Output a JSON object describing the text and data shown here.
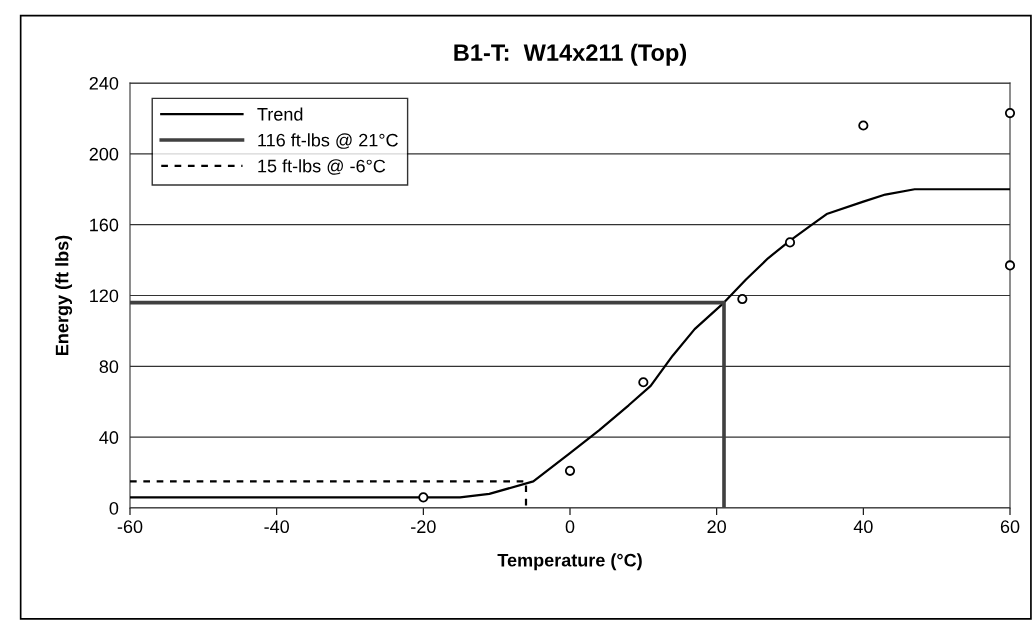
{
  "chart_data": {
    "type": "line",
    "title": "B1-T:  W14x211 (Top)",
    "xlabel": "Temperature (°C)",
    "ylabel": "Energy (ft lbs)",
    "xlim": [
      -60,
      60
    ],
    "xticks": [
      -60,
      -40,
      -20,
      0,
      20,
      40,
      60
    ],
    "ylim": [
      0,
      240
    ],
    "yticks": [
      0,
      40,
      80,
      120,
      160,
      200,
      240
    ],
    "grid": "y",
    "legend": "top left",
    "series": [
      {
        "type": "scatter",
        "marker": "circle",
        "color": "#000000",
        "x": [
          -20,
          0,
          10,
          23.5,
          30,
          40,
          60,
          60
        ],
        "values": [
          6,
          21,
          71,
          118,
          150,
          216,
          223,
          137
        ]
      },
      {
        "name": "Trend",
        "color": "#000000",
        "marker": "none",
        "line_style": "solid",
        "x": [
          -60,
          -15,
          -11,
          -5,
          0,
          4,
          8,
          11,
          14,
          17,
          21,
          24,
          27,
          30,
          33,
          35,
          40,
          43,
          47,
          60
        ],
        "values": [
          6,
          6,
          8,
          15,
          31,
          44,
          58,
          69,
          86,
          101,
          116,
          129,
          141,
          151,
          160,
          166,
          173,
          177,
          180,
          180
        ]
      },
      {
        "name": "116 ft-lbs @ 21°C",
        "color": "#404040",
        "marker": "none",
        "line_style": "solid",
        "x": [
          -60,
          21,
          21
        ],
        "values": [
          116,
          116,
          0
        ]
      },
      {
        "name": "15 ft-lbs @ -6°C",
        "color": "#000000",
        "marker": "none",
        "line_style": "dashed",
        "x": [
          -60,
          -6,
          -6
        ],
        "values": [
          15,
          15,
          0
        ]
      }
    ]
  }
}
